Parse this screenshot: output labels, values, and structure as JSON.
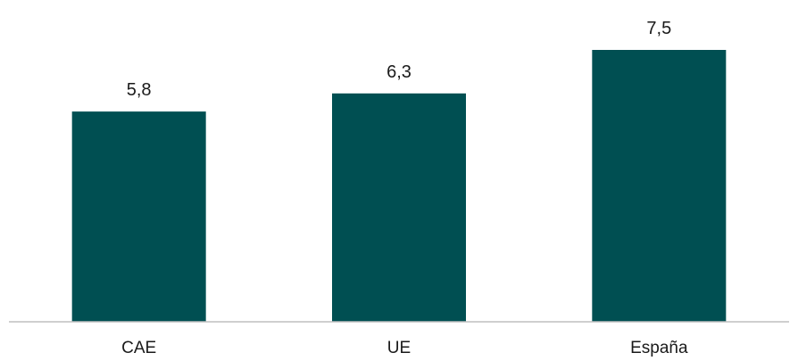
{
  "chart_data": {
    "type": "bar",
    "categories": [
      "CAE",
      "UE",
      "España"
    ],
    "values": [
      5.8,
      6.3,
      7.5
    ],
    "value_labels": [
      "5,8",
      "6,3",
      "7,5"
    ],
    "title": "",
    "xlabel": "",
    "ylabel": "",
    "ylim": [
      0,
      7.5
    ],
    "grid": false,
    "legend": "none",
    "bar_color": "#004f52",
    "axis_color": "#bfbfbf"
  }
}
